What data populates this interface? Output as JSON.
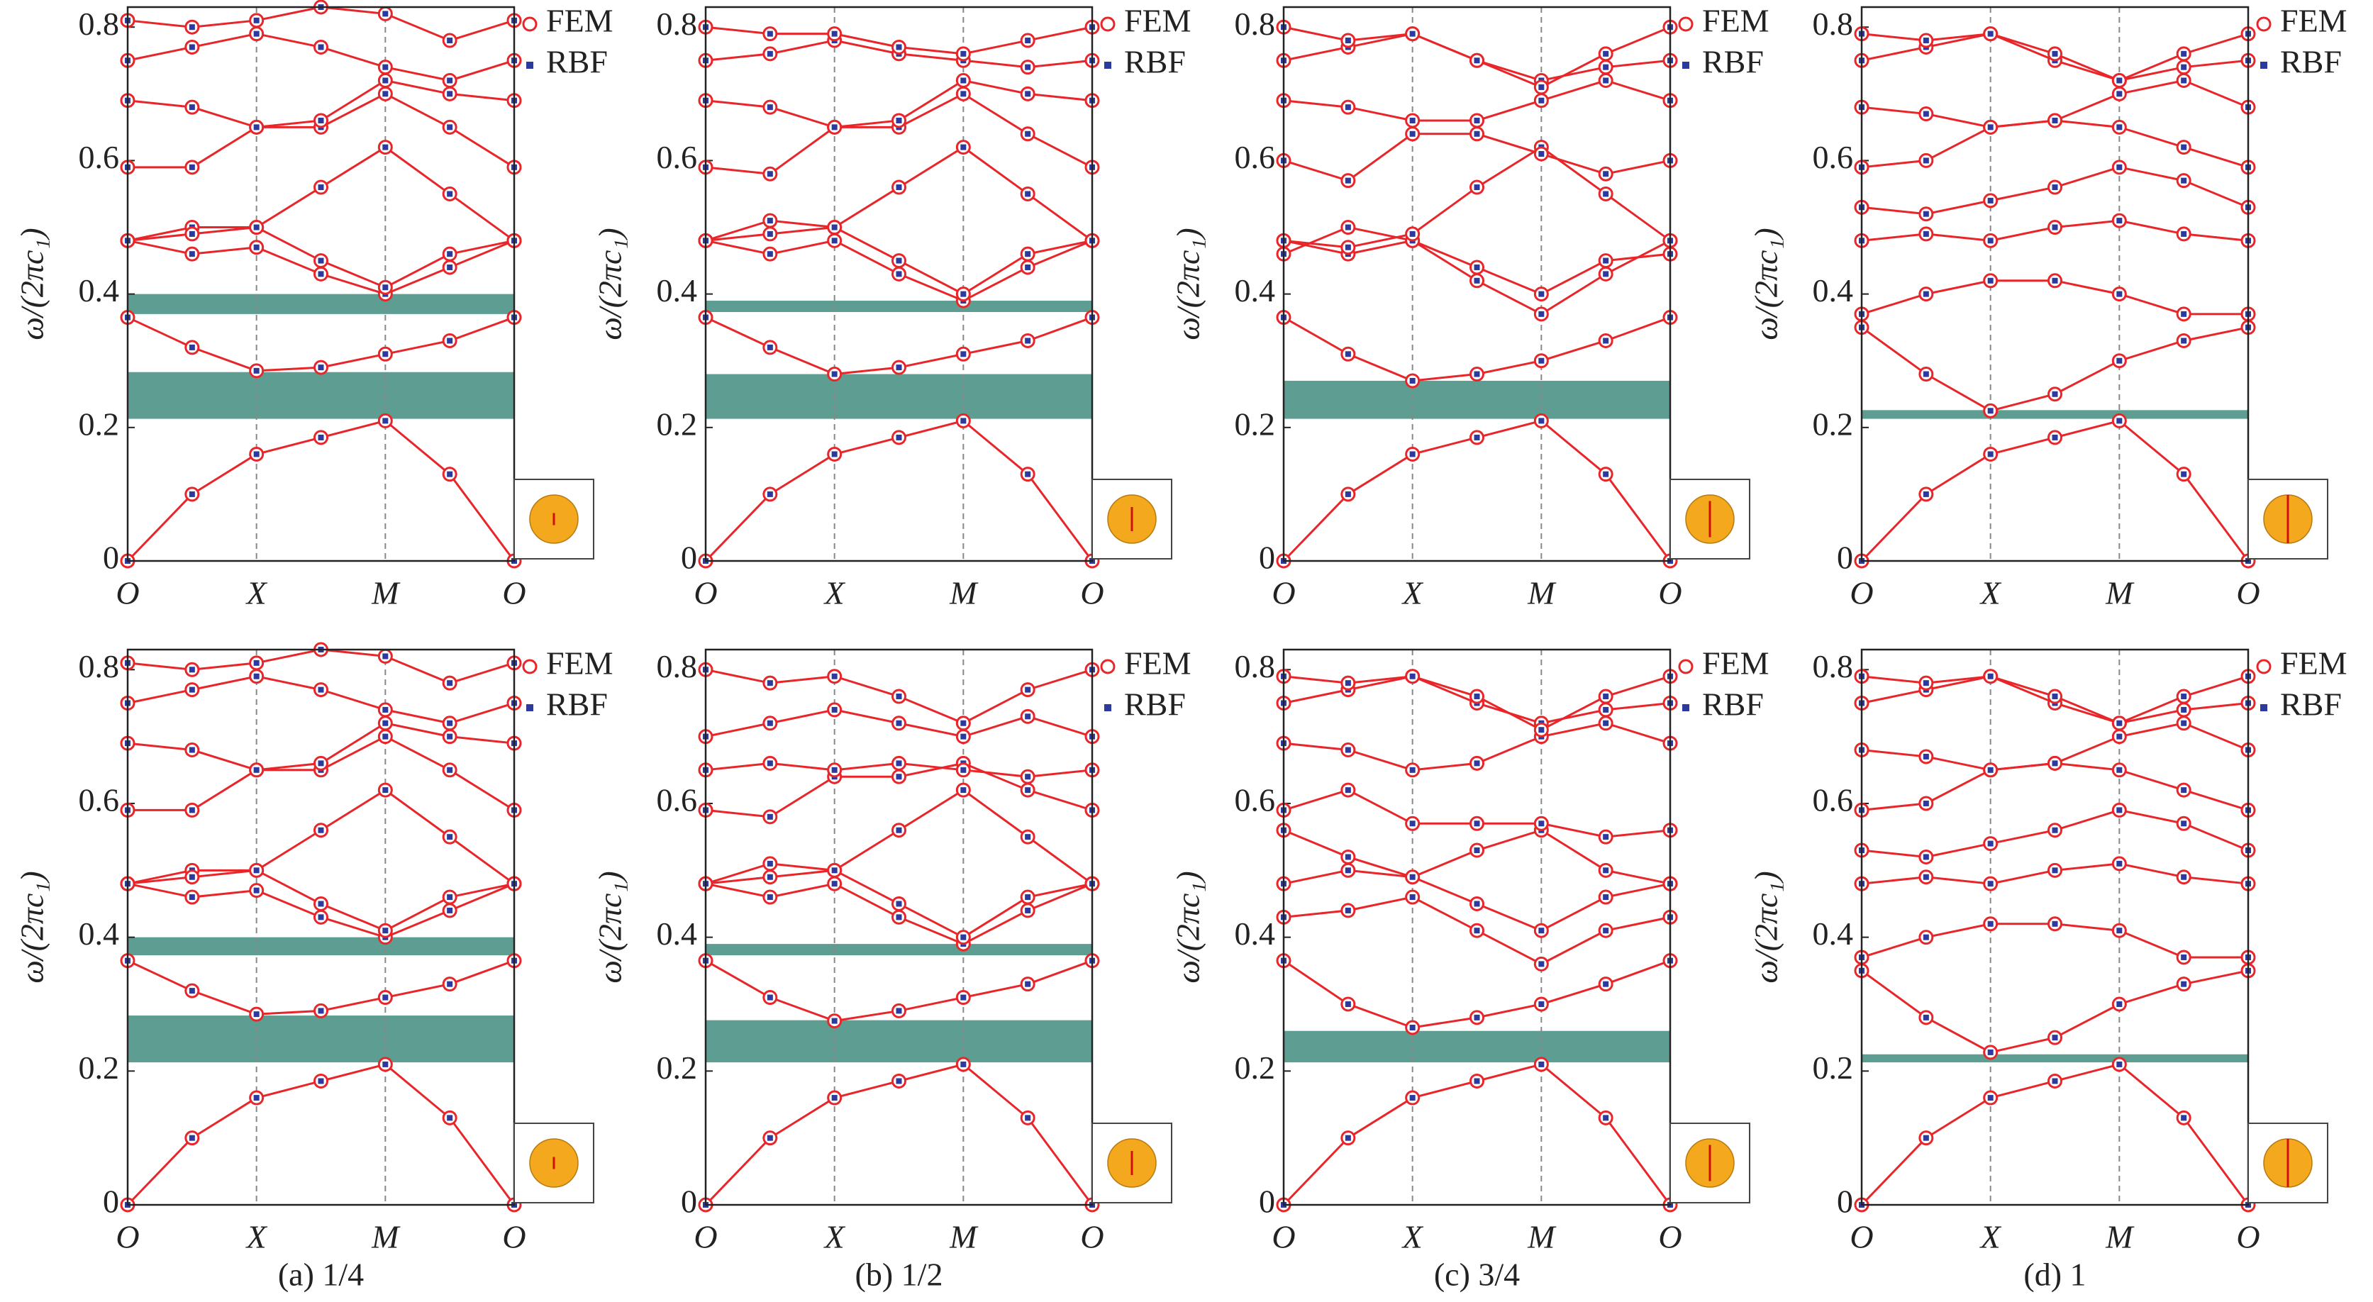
{
  "chart_data": [
    {
      "type": "band",
      "ylabel": "ω/(2πc₁)",
      "x": [
        0,
        0.5,
        1,
        1.5,
        2,
        2.5,
        3
      ],
      "xlim": [
        0,
        3
      ],
      "ylim": [
        0,
        0.83
      ],
      "xticks": [
        {
          "value": 0,
          "label": "O"
        },
        {
          "value": 1,
          "label": "X"
        },
        {
          "value": 2,
          "label": "M"
        },
        {
          "value": 3,
          "label": "O"
        }
      ],
      "yticks": [
        0,
        0.2,
        0.4,
        0.6,
        0.8
      ],
      "legend": [
        {
          "name": "FEM",
          "color": "#e8262a"
        },
        {
          "name": "RBF",
          "color": "#2b3a9c"
        }
      ],
      "gaps": [
        [
          0.37,
          0.4
        ],
        [
          0.213,
          0.283
        ]
      ],
      "gap_color": "#5e9e92",
      "bands": [
        [
          0,
          0.1,
          0.16,
          0.185,
          0.21,
          0.13,
          0
        ],
        [
          0.365,
          0.32,
          0.285,
          0.29,
          0.31,
          0.33,
          0.365
        ],
        [
          0.48,
          0.46,
          0.47,
          0.43,
          0.4,
          0.44,
          0.48
        ],
        [
          0.48,
          0.5,
          0.5,
          0.45,
          0.41,
          0.46,
          0.48
        ],
        [
          0.48,
          0.49,
          0.5,
          0.56,
          0.62,
          0.55,
          0.48
        ],
        [
          0.59,
          0.59,
          0.65,
          0.65,
          0.7,
          0.65,
          0.59
        ],
        [
          0.69,
          0.68,
          0.65,
          0.66,
          0.72,
          0.7,
          0.69
        ],
        [
          0.75,
          0.77,
          0.79,
          0.77,
          0.74,
          0.72,
          0.75
        ],
        [
          0.81,
          0.8,
          0.81,
          0.83,
          0.82,
          0.78,
          0.81
        ]
      ]
    },
    {
      "type": "band",
      "ylabel": "ω/(2πc₁)",
      "x": [
        0,
        0.5,
        1,
        1.5,
        2,
        2.5,
        3
      ],
      "xlim": [
        0,
        3
      ],
      "ylim": [
        0,
        0.83
      ],
      "xticks": [
        {
          "value": 0,
          "label": "O"
        },
        {
          "value": 1,
          "label": "X"
        },
        {
          "value": 2,
          "label": "M"
        },
        {
          "value": 3,
          "label": "O"
        }
      ],
      "yticks": [
        0,
        0.2,
        0.4,
        0.6,
        0.8
      ],
      "legend": [
        {
          "name": "FEM",
          "color": "#e8262a"
        },
        {
          "name": "RBF",
          "color": "#2b3a9c"
        }
      ],
      "gaps": [
        [
          0.373,
          0.39
        ],
        [
          0.213,
          0.28
        ]
      ],
      "gap_color": "#5e9e92",
      "bands": [
        [
          0,
          0.1,
          0.16,
          0.185,
          0.21,
          0.13,
          0
        ],
        [
          0.365,
          0.32,
          0.28,
          0.29,
          0.31,
          0.33,
          0.365
        ],
        [
          0.48,
          0.46,
          0.48,
          0.43,
          0.39,
          0.44,
          0.48
        ],
        [
          0.48,
          0.51,
          0.5,
          0.45,
          0.4,
          0.46,
          0.48
        ],
        [
          0.48,
          0.49,
          0.5,
          0.56,
          0.62,
          0.55,
          0.48
        ],
        [
          0.59,
          0.58,
          0.65,
          0.65,
          0.7,
          0.64,
          0.59
        ],
        [
          0.69,
          0.68,
          0.65,
          0.66,
          0.72,
          0.7,
          0.69
        ],
        [
          0.75,
          0.76,
          0.78,
          0.76,
          0.75,
          0.74,
          0.75
        ],
        [
          0.8,
          0.79,
          0.79,
          0.77,
          0.76,
          0.78,
          0.8
        ]
      ]
    },
    {
      "type": "band",
      "ylabel": "ω/(2πc₁)",
      "x": [
        0,
        0.5,
        1,
        1.5,
        2,
        2.5,
        3
      ],
      "xlim": [
        0,
        3
      ],
      "ylim": [
        0,
        0.83
      ],
      "xticks": [
        {
          "value": 0,
          "label": "O"
        },
        {
          "value": 1,
          "label": "X"
        },
        {
          "value": 2,
          "label": "M"
        },
        {
          "value": 3,
          "label": "O"
        }
      ],
      "yticks": [
        0,
        0.2,
        0.4,
        0.6,
        0.8
      ],
      "legend": [
        {
          "name": "FEM",
          "color": "#e8262a"
        },
        {
          "name": "RBF",
          "color": "#2b3a9c"
        }
      ],
      "gaps": [
        [
          0.213,
          0.27
        ]
      ],
      "gap_color": "#5e9e92",
      "bands": [
        [
          0,
          0.1,
          0.16,
          0.185,
          0.21,
          0.13,
          0
        ],
        [
          0.365,
          0.31,
          0.27,
          0.28,
          0.3,
          0.33,
          0.365
        ],
        [
          0.48,
          0.46,
          0.48,
          0.42,
          0.37,
          0.43,
          0.48
        ],
        [
          0.46,
          0.5,
          0.48,
          0.44,
          0.4,
          0.45,
          0.46
        ],
        [
          0.48,
          0.47,
          0.49,
          0.56,
          0.62,
          0.55,
          0.48
        ],
        [
          0.6,
          0.57,
          0.64,
          0.64,
          0.61,
          0.58,
          0.6
        ],
        [
          0.69,
          0.68,
          0.66,
          0.66,
          0.69,
          0.72,
          0.69
        ],
        [
          0.75,
          0.77,
          0.79,
          0.75,
          0.72,
          0.74,
          0.75
        ],
        [
          0.8,
          0.78,
          0.79,
          0.75,
          0.71,
          0.76,
          0.8
        ]
      ]
    },
    {
      "type": "band",
      "ylabel": "ω/(2πc₁)",
      "x": [
        0,
        0.5,
        1,
        1.5,
        2,
        2.5,
        3
      ],
      "xlim": [
        0,
        3
      ],
      "ylim": [
        0,
        0.83
      ],
      "xticks": [
        {
          "value": 0,
          "label": "O"
        },
        {
          "value": 1,
          "label": "X"
        },
        {
          "value": 2,
          "label": "M"
        },
        {
          "value": 3,
          "label": "O"
        }
      ],
      "yticks": [
        0,
        0.2,
        0.4,
        0.6,
        0.8
      ],
      "legend": [
        {
          "name": "FEM",
          "color": "#e8262a"
        },
        {
          "name": "RBF",
          "color": "#2b3a9c"
        }
      ],
      "gaps": [
        [
          0.213,
          0.226
        ]
      ],
      "gap_color": "#5e9e92",
      "bands": [
        [
          0,
          0.1,
          0.16,
          0.185,
          0.21,
          0.13,
          0
        ],
        [
          0.35,
          0.28,
          0.225,
          0.25,
          0.3,
          0.33,
          0.35
        ],
        [
          0.37,
          0.4,
          0.42,
          0.42,
          0.4,
          0.37,
          0.37
        ],
        [
          0.48,
          0.49,
          0.48,
          0.5,
          0.51,
          0.49,
          0.48
        ],
        [
          0.53,
          0.52,
          0.54,
          0.56,
          0.59,
          0.57,
          0.53
        ],
        [
          0.59,
          0.6,
          0.65,
          0.66,
          0.65,
          0.62,
          0.59
        ],
        [
          0.68,
          0.67,
          0.65,
          0.66,
          0.7,
          0.72,
          0.68
        ],
        [
          0.75,
          0.77,
          0.79,
          0.75,
          0.72,
          0.74,
          0.75
        ],
        [
          0.79,
          0.78,
          0.79,
          0.76,
          0.72,
          0.76,
          0.79
        ]
      ]
    },
    {
      "type": "band",
      "ylabel": "ω/(2πc₁)",
      "caption": "(a) 1/4",
      "x": [
        0,
        0.5,
        1,
        1.5,
        2,
        2.5,
        3
      ],
      "xlim": [
        0,
        3
      ],
      "ylim": [
        0,
        0.83
      ],
      "xticks": [
        {
          "value": 0,
          "label": "O"
        },
        {
          "value": 1,
          "label": "X"
        },
        {
          "value": 2,
          "label": "M"
        },
        {
          "value": 3,
          "label": "O"
        }
      ],
      "yticks": [
        0,
        0.2,
        0.4,
        0.6,
        0.8
      ],
      "legend": [
        {
          "name": "FEM",
          "color": "#e8262a"
        },
        {
          "name": "RBF",
          "color": "#2b3a9c"
        }
      ],
      "gaps": [
        [
          0.373,
          0.4
        ],
        [
          0.213,
          0.283
        ]
      ],
      "gap_color": "#5e9e92",
      "bands": [
        [
          0,
          0.1,
          0.16,
          0.185,
          0.21,
          0.13,
          0
        ],
        [
          0.365,
          0.32,
          0.285,
          0.29,
          0.31,
          0.33,
          0.365
        ],
        [
          0.48,
          0.46,
          0.47,
          0.43,
          0.4,
          0.44,
          0.48
        ],
        [
          0.48,
          0.5,
          0.5,
          0.45,
          0.41,
          0.46,
          0.48
        ],
        [
          0.48,
          0.49,
          0.5,
          0.56,
          0.62,
          0.55,
          0.48
        ],
        [
          0.59,
          0.59,
          0.65,
          0.65,
          0.7,
          0.65,
          0.59
        ],
        [
          0.69,
          0.68,
          0.65,
          0.66,
          0.72,
          0.7,
          0.69
        ],
        [
          0.75,
          0.77,
          0.79,
          0.77,
          0.74,
          0.72,
          0.75
        ],
        [
          0.81,
          0.8,
          0.81,
          0.83,
          0.82,
          0.78,
          0.81
        ]
      ]
    },
    {
      "type": "band",
      "ylabel": "ω/(2πc₁)",
      "caption": "(b) 1/2",
      "x": [
        0,
        0.5,
        1,
        1.5,
        2,
        2.5,
        3
      ],
      "xlim": [
        0,
        3
      ],
      "ylim": [
        0,
        0.83
      ],
      "xticks": [
        {
          "value": 0,
          "label": "O"
        },
        {
          "value": 1,
          "label": "X"
        },
        {
          "value": 2,
          "label": "M"
        },
        {
          "value": 3,
          "label": "O"
        }
      ],
      "yticks": [
        0,
        0.2,
        0.4,
        0.6,
        0.8
      ],
      "legend": [
        {
          "name": "FEM",
          "color": "#e8262a"
        },
        {
          "name": "RBF",
          "color": "#2b3a9c"
        }
      ],
      "gaps": [
        [
          0.373,
          0.39
        ],
        [
          0.213,
          0.276
        ]
      ],
      "gap_color": "#5e9e92",
      "bands": [
        [
          0,
          0.1,
          0.16,
          0.185,
          0.21,
          0.13,
          0
        ],
        [
          0.365,
          0.31,
          0.275,
          0.29,
          0.31,
          0.33,
          0.365
        ],
        [
          0.48,
          0.46,
          0.48,
          0.43,
          0.39,
          0.44,
          0.48
        ],
        [
          0.48,
          0.51,
          0.5,
          0.45,
          0.4,
          0.46,
          0.48
        ],
        [
          0.48,
          0.49,
          0.5,
          0.56,
          0.62,
          0.55,
          0.48
        ],
        [
          0.59,
          0.58,
          0.64,
          0.64,
          0.66,
          0.62,
          0.59
        ],
        [
          0.65,
          0.66,
          0.65,
          0.66,
          0.65,
          0.64,
          0.65
        ],
        [
          0.7,
          0.72,
          0.74,
          0.72,
          0.7,
          0.73,
          0.7
        ],
        [
          0.8,
          0.78,
          0.79,
          0.76,
          0.72,
          0.77,
          0.8
        ]
      ]
    },
    {
      "type": "band",
      "ylabel": "ω/(2πc₁)",
      "caption": "(c) 3/4",
      "x": [
        0,
        0.5,
        1,
        1.5,
        2,
        2.5,
        3
      ],
      "xlim": [
        0,
        3
      ],
      "ylim": [
        0,
        0.83
      ],
      "xticks": [
        {
          "value": 0,
          "label": "O"
        },
        {
          "value": 1,
          "label": "X"
        },
        {
          "value": 2,
          "label": "M"
        },
        {
          "value": 3,
          "label": "O"
        }
      ],
      "yticks": [
        0,
        0.2,
        0.4,
        0.6,
        0.8
      ],
      "legend": [
        {
          "name": "FEM",
          "color": "#e8262a"
        },
        {
          "name": "RBF",
          "color": "#2b3a9c"
        }
      ],
      "gaps": [
        [
          0.213,
          0.26
        ]
      ],
      "gap_color": "#5e9e92",
      "bands": [
        [
          0,
          0.1,
          0.16,
          0.185,
          0.21,
          0.13,
          0
        ],
        [
          0.365,
          0.3,
          0.265,
          0.28,
          0.3,
          0.33,
          0.365
        ],
        [
          0.43,
          0.44,
          0.46,
          0.41,
          0.36,
          0.41,
          0.43
        ],
        [
          0.48,
          0.5,
          0.49,
          0.45,
          0.41,
          0.46,
          0.48
        ],
        [
          0.56,
          0.52,
          0.49,
          0.53,
          0.56,
          0.5,
          0.48
        ],
        [
          0.59,
          0.62,
          0.57,
          0.57,
          0.57,
          0.55,
          0.56
        ],
        [
          0.69,
          0.68,
          0.65,
          0.66,
          0.7,
          0.72,
          0.69
        ],
        [
          0.75,
          0.77,
          0.79,
          0.75,
          0.72,
          0.74,
          0.75
        ],
        [
          0.79,
          0.78,
          0.79,
          0.76,
          0.71,
          0.76,
          0.79
        ]
      ]
    },
    {
      "type": "band",
      "ylabel": "ω/(2πc₁)",
      "caption": "(d) 1",
      "x": [
        0,
        0.5,
        1,
        1.5,
        2,
        2.5,
        3
      ],
      "xlim": [
        0,
        3
      ],
      "ylim": [
        0,
        0.83
      ],
      "xticks": [
        {
          "value": 0,
          "label": "O"
        },
        {
          "value": 1,
          "label": "X"
        },
        {
          "value": 2,
          "label": "M"
        },
        {
          "value": 3,
          "label": "O"
        }
      ],
      "yticks": [
        0,
        0.2,
        0.4,
        0.6,
        0.8
      ],
      "legend": [
        {
          "name": "FEM",
          "color": "#e8262a"
        },
        {
          "name": "RBF",
          "color": "#2b3a9c"
        }
      ],
      "gaps": [
        [
          0.213,
          0.225
        ]
      ],
      "gap_color": "#5e9e92",
      "bands": [
        [
          0,
          0.1,
          0.16,
          0.185,
          0.21,
          0.13,
          0
        ],
        [
          0.35,
          0.28,
          0.228,
          0.25,
          0.3,
          0.33,
          0.35
        ],
        [
          0.37,
          0.4,
          0.42,
          0.42,
          0.41,
          0.37,
          0.37
        ],
        [
          0.48,
          0.49,
          0.48,
          0.5,
          0.51,
          0.49,
          0.48
        ],
        [
          0.53,
          0.52,
          0.54,
          0.56,
          0.59,
          0.57,
          0.53
        ],
        [
          0.59,
          0.6,
          0.65,
          0.66,
          0.65,
          0.62,
          0.59
        ],
        [
          0.68,
          0.67,
          0.65,
          0.66,
          0.7,
          0.72,
          0.68
        ],
        [
          0.75,
          0.77,
          0.79,
          0.75,
          0.72,
          0.74,
          0.75
        ],
        [
          0.79,
          0.78,
          0.79,
          0.76,
          0.72,
          0.76,
          0.79
        ]
      ]
    }
  ]
}
